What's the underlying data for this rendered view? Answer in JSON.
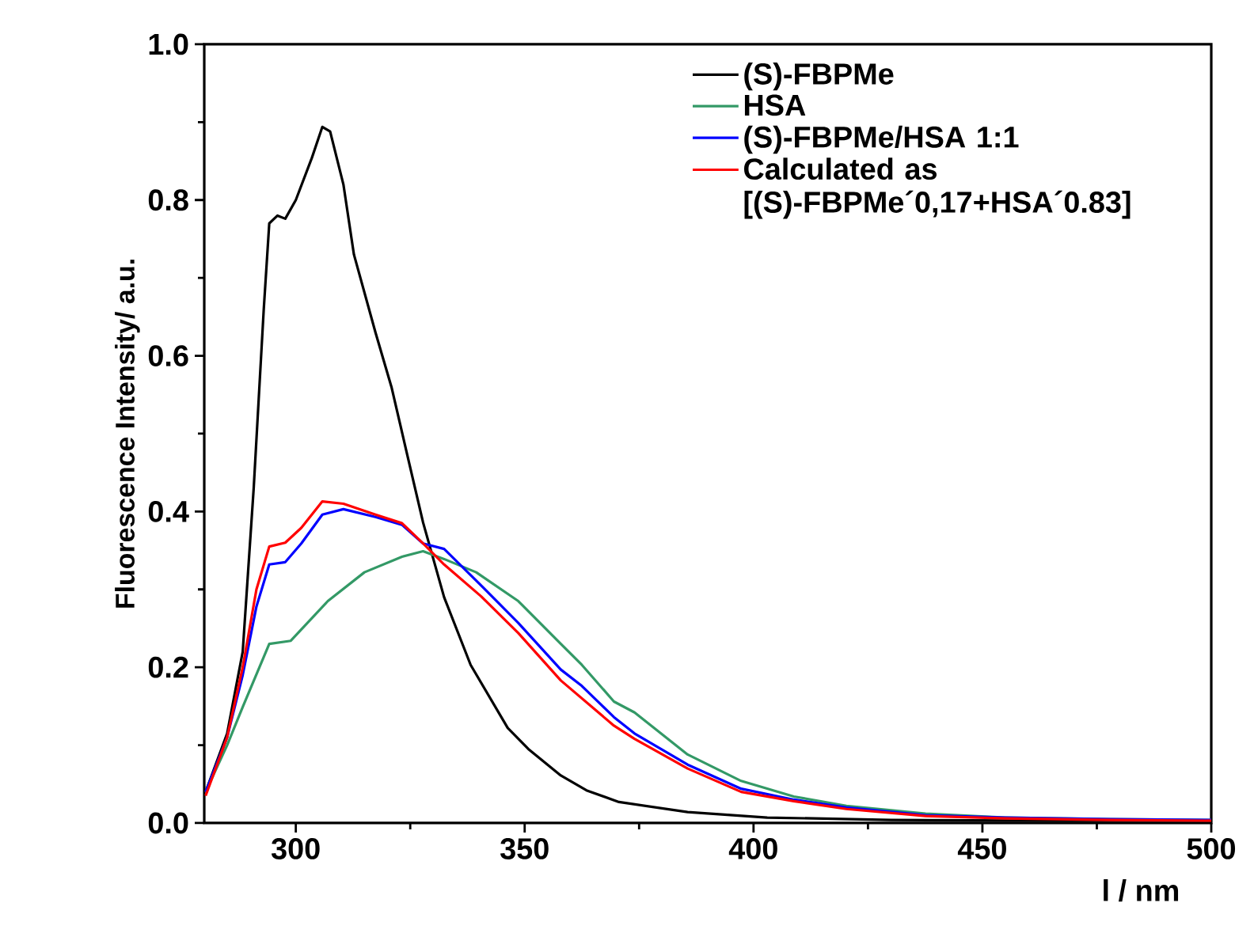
{
  "chart_data": {
    "type": "line",
    "xlabel": "l / nm",
    "ylabel": "Fluorescence Intensity/ a.u.",
    "xlim": [
      280,
      500
    ],
    "xticks": [
      300,
      350,
      400,
      450,
      500
    ],
    "ylim": [
      0,
      1
    ],
    "yticks": [
      {
        "value": 0,
        "label": "0.0"
      },
      0.2,
      0.4,
      0.6,
      0.8,
      {
        "value": 1,
        "label": "1.0"
      }
    ],
    "legend": "top right",
    "grid": false,
    "line_style": "solid",
    "marker": "none",
    "series": [
      {
        "name": "(S)-FBPMe",
        "color": "#000000",
        "x": [
          280.3,
          285,
          288.4,
          290.8,
          293,
          294.2,
          296,
          297.7,
          300,
          303.5,
          305.8,
          307.5,
          310.4,
          312.7,
          317.4,
          320.9,
          324.3,
          327.8,
          332.4,
          338.2,
          346.3,
          350.8,
          357.9,
          363.5,
          370.6,
          385.6,
          403,
          430,
          460,
          500
        ],
        "values": [
          0.04,
          0.115,
          0.22,
          0.43,
          0.66,
          0.77,
          0.78,
          0.776,
          0.8,
          0.854,
          0.894,
          0.888,
          0.82,
          0.73,
          0.63,
          0.56,
          0.474,
          0.386,
          0.29,
          0.203,
          0.122,
          0.095,
          0.061,
          0.042,
          0.027,
          0.014,
          0.007,
          0.004,
          0.003,
          0.003
        ]
      },
      {
        "name": "HSA",
        "color": "#339966",
        "x": [
          280.3,
          285,
          288.4,
          294.2,
          298.9,
          307,
          315,
          323.2,
          327.8,
          332.4,
          339.4,
          348.6,
          357.9,
          362.5,
          369.5,
          374,
          385.6,
          397.3,
          408.8,
          420.3,
          437.6,
          455,
          478,
          500
        ],
        "values": [
          0.04,
          0.1,
          0.149,
          0.23,
          0.234,
          0.285,
          0.322,
          0.342,
          0.349,
          0.339,
          0.322,
          0.285,
          0.23,
          0.203,
          0.156,
          0.142,
          0.088,
          0.054,
          0.034,
          0.022,
          0.012,
          0.007,
          0.005,
          0.004
        ]
      },
      {
        "name": "(S)-FBPMe/HSA 1:1",
        "color": "#0000ff",
        "x": [
          280.3,
          285,
          288.4,
          291.4,
          294.2,
          297.7,
          301.2,
          305.8,
          310.4,
          317.4,
          323.2,
          327.8,
          332.4,
          340.5,
          348.6,
          357.9,
          362.5,
          369.5,
          374,
          385.6,
          397.3,
          408.8,
          420.3,
          437.6,
          455,
          478,
          500
        ],
        "values": [
          0.04,
          0.11,
          0.19,
          0.278,
          0.332,
          0.335,
          0.359,
          0.396,
          0.403,
          0.393,
          0.383,
          0.359,
          0.352,
          0.305,
          0.257,
          0.197,
          0.176,
          0.136,
          0.115,
          0.075,
          0.044,
          0.03,
          0.02,
          0.01,
          0.007,
          0.005,
          0.004
        ]
      },
      {
        "name": "Calculated as [(S)-FBPMe´0,17+HSA´0.83]",
        "color": "#ff0000",
        "x": [
          280.3,
          285,
          288.4,
          291.4,
          294.2,
          297.7,
          301.2,
          305.8,
          310.4,
          317.4,
          323.2,
          327.8,
          332.4,
          340.5,
          348.6,
          357.9,
          369.5,
          374,
          385.6,
          397.3,
          408.8,
          420.3,
          437.6,
          455,
          478,
          500
        ],
        "values": [
          0.035,
          0.11,
          0.2,
          0.3,
          0.355,
          0.36,
          0.379,
          0.413,
          0.41,
          0.396,
          0.385,
          0.359,
          0.332,
          0.291,
          0.244,
          0.183,
          0.125,
          0.108,
          0.07,
          0.04,
          0.028,
          0.018,
          0.009,
          0.006,
          0.004,
          0.003
        ]
      }
    ]
  }
}
